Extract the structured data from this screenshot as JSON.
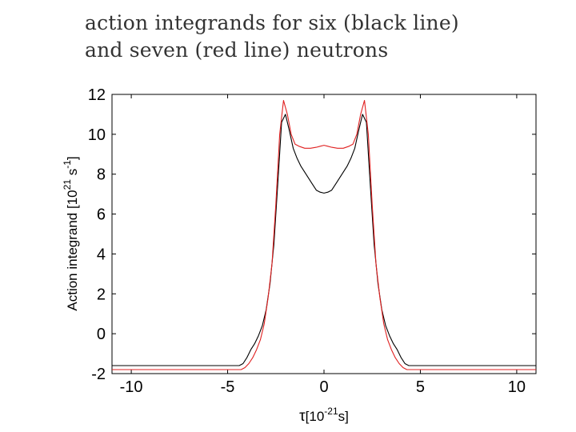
{
  "slide": {
    "title_line1": "action integrands for six (black line)",
    "title_line2": "and seven (red line) neutrons"
  },
  "chart_data": {
    "type": "line",
    "title": "action integrands for six (black line) and seven (red line) neutrons",
    "xlabel_main": "τ",
    "xlabel_unit_base": "[10",
    "xlabel_unit_exp": "-21",
    "xlabel_unit_tail": "s]",
    "ylabel_main": "Action integrand [10",
    "ylabel_exp1": "21",
    "ylabel_mid": " s",
    "ylabel_exp2": "-1",
    "ylabel_tail": "]",
    "xlim": [
      -11,
      11
    ],
    "ylim": [
      -2,
      12
    ],
    "xticks": [
      -10,
      -5,
      0,
      5,
      10
    ],
    "yticks": [
      -2,
      0,
      2,
      4,
      6,
      8,
      10,
      12
    ],
    "grid": false,
    "series": [
      {
        "color": "#000000",
        "x": [
          -11,
          -4.4,
          -4.2,
          -4.0,
          -3.8,
          -3.6,
          -3.4,
          -3.2,
          -3.0,
          -2.8,
          -2.6,
          -2.4,
          -2.2,
          -2.0,
          -1.8,
          -1.6,
          -1.4,
          -1.2,
          -1.0,
          -0.8,
          -0.6,
          -0.4,
          -0.2,
          0,
          0.2,
          0.4,
          0.6,
          0.8,
          1.0,
          1.2,
          1.4,
          1.6,
          1.8,
          2.0,
          2.2,
          2.4,
          2.6,
          2.8,
          3.0,
          3.2,
          3.4,
          3.6,
          3.8,
          4.0,
          4.2,
          4.4,
          11
        ],
        "y": [
          -1.6,
          -1.6,
          -1.5,
          -1.2,
          -0.8,
          -0.5,
          -0.1,
          0.4,
          1.2,
          2.5,
          4.5,
          7.5,
          10.6,
          11.0,
          10.2,
          9.3,
          8.8,
          8.4,
          8.1,
          7.8,
          7.5,
          7.2,
          7.1,
          7.05,
          7.1,
          7.2,
          7.5,
          7.8,
          8.1,
          8.4,
          8.8,
          9.3,
          10.2,
          11.0,
          10.6,
          7.5,
          4.5,
          2.5,
          1.2,
          0.4,
          -0.1,
          -0.5,
          -0.8,
          -1.2,
          -1.5,
          -1.6,
          -1.6
        ]
      },
      {
        "color": "#e02020",
        "x": [
          -11,
          -4.3,
          -4.1,
          -3.9,
          -3.7,
          -3.5,
          -3.3,
          -3.1,
          -2.9,
          -2.7,
          -2.5,
          -2.3,
          -2.1,
          -1.9,
          -1.7,
          -1.5,
          -1.3,
          -1.0,
          -0.7,
          -0.4,
          -0.2,
          0,
          0.2,
          0.4,
          0.7,
          1.0,
          1.3,
          1.5,
          1.7,
          1.9,
          2.1,
          2.3,
          2.5,
          2.7,
          2.9,
          3.1,
          3.3,
          3.5,
          3.7,
          3.9,
          4.1,
          4.3,
          11
        ],
        "y": [
          -1.8,
          -1.8,
          -1.7,
          -1.5,
          -1.2,
          -0.8,
          -0.3,
          0.5,
          1.8,
          3.5,
          6.5,
          10.0,
          11.7,
          11.0,
          10.0,
          9.5,
          9.4,
          9.3,
          9.3,
          9.35,
          9.4,
          9.45,
          9.4,
          9.35,
          9.3,
          9.3,
          9.4,
          9.5,
          10.0,
          11.0,
          11.7,
          10.0,
          6.5,
          3.5,
          1.8,
          0.5,
          -0.3,
          -0.8,
          -1.2,
          -1.5,
          -1.7,
          -1.8,
          -1.8
        ]
      }
    ]
  }
}
